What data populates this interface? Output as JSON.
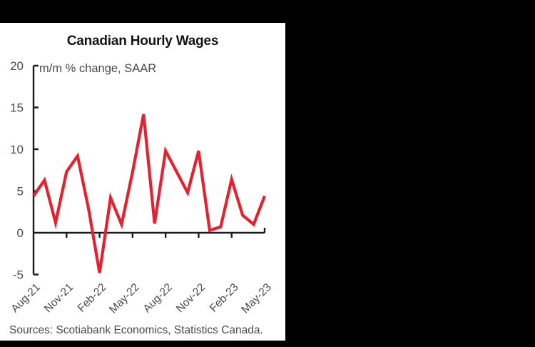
{
  "window": {
    "background_color": "#000000",
    "card_color": "#ffffff"
  },
  "chart_data": {
    "type": "line",
    "title": "Canadian Hourly Wages",
    "annotation": "m/m % change, SAAR",
    "x": [
      "Aug-21",
      "Sep-21",
      "Oct-21",
      "Nov-21",
      "Dec-21",
      "Jan-22",
      "Feb-22",
      "Mar-22",
      "Apr-22",
      "May-22",
      "Jun-22",
      "Jul-22",
      "Aug-22",
      "Sep-22",
      "Oct-22",
      "Nov-22",
      "Dec-22",
      "Jan-23",
      "Feb-23",
      "Mar-23",
      "Apr-23",
      "May-23"
    ],
    "series": [
      {
        "name": "Canadian hourly wages, m/m % change, SAAR",
        "values": [
          4.4,
          6.3,
          1.2,
          7.3,
          9.2,
          2.9,
          -4.8,
          4.2,
          1.0,
          7.3,
          14.2,
          1.1,
          9.8,
          7.3,
          4.8,
          9.8,
          0.3,
          0.7,
          6.4,
          2.1,
          1.0,
          4.4
        ]
      }
    ],
    "x_tick_labels": [
      "Aug-21",
      "Nov-21",
      "Feb-22",
      "May-22",
      "Aug-22",
      "Nov-22",
      "Feb-23",
      "May-23"
    ],
    "y_ticks": [
      20,
      15,
      10,
      5,
      0,
      -5
    ],
    "ylim": [
      -5,
      20
    ],
    "grid": false,
    "legend": false,
    "colors": {
      "line": "#e6202e",
      "axis": "#1c1c1c",
      "tick_label": "#4a4a4a",
      "title": "#141414"
    }
  },
  "footer": {
    "sources": "Sources: Scotiabank Economics, Statistics Canada."
  }
}
